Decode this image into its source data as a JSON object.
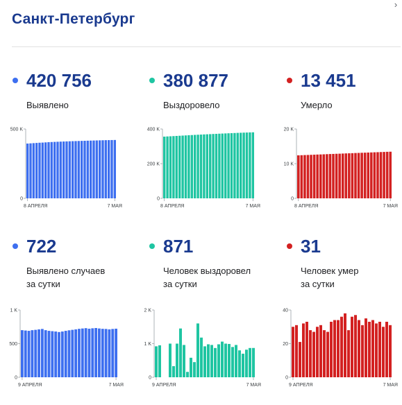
{
  "title": "Санкт-Петербург",
  "icons": {
    "expand": "chevron-icon"
  },
  "panels": [
    {
      "id": "detected",
      "value": "420 756",
      "label_lines": [
        "Выявлено"
      ],
      "color": "#3d6ff0",
      "chart_data": {
        "type": "bar",
        "x_first_label": "8 АПРЕЛЯ",
        "x_last_label": "7 МАЯ",
        "y_ticks": [
          {
            "value": 0,
            "label": "0"
          },
          {
            "value": 500000,
            "label": "500 K"
          }
        ],
        "ylim": [
          0,
          500000
        ],
        "values": [
          395000,
          396500,
          398000,
          399500,
          401000,
          402000,
          403500,
          405000,
          406000,
          407000,
          408000,
          409000,
          409800,
          410600,
          411400,
          412200,
          412900,
          413600,
          414300,
          415000,
          415700,
          416400,
          417000,
          417600,
          418200,
          418800,
          419400,
          419800,
          420300,
          420756
        ]
      }
    },
    {
      "id": "recovered",
      "value": "380 877",
      "label_lines": [
        "Выздоровело"
      ],
      "color": "#1fc5a2",
      "chart_data": {
        "type": "bar",
        "x_first_label": "8 АПРЕЛЯ",
        "x_last_label": "7 МАЯ",
        "y_ticks": [
          {
            "value": 0,
            "label": "0"
          },
          {
            "value": 200000,
            "label": "200 K"
          },
          {
            "value": 400000,
            "label": "400 K"
          }
        ],
        "ylim": [
          0,
          400000
        ],
        "values": [
          356000,
          357000,
          358000,
          359000,
          360000,
          361000,
          362000,
          363000,
          364000,
          365000,
          366000,
          366900,
          367800,
          368700,
          369500,
          370300,
          371200,
          372000,
          372900,
          373700,
          374500,
          375300,
          376100,
          376800,
          377600,
          378300,
          379000,
          379600,
          380300,
          380877
        ]
      }
    },
    {
      "id": "deaths",
      "value": "13 451",
      "label_lines": [
        "Умерло"
      ],
      "color": "#d32121",
      "chart_data": {
        "type": "bar",
        "x_first_label": "8 АПРЕЛЯ",
        "x_last_label": "7 МАЯ",
        "y_ticks": [
          {
            "value": 0,
            "label": "0"
          },
          {
            "value": 10000,
            "label": "10 K"
          },
          {
            "value": 20000,
            "label": "20 K"
          }
        ],
        "ylim": [
          0,
          20000
        ],
        "values": [
          12400,
          12440,
          12480,
          12510,
          12550,
          12590,
          12630,
          12660,
          12700,
          12740,
          12780,
          12810,
          12850,
          12880,
          12920,
          12960,
          12990,
          13030,
          13070,
          13100,
          13140,
          13170,
          13210,
          13240,
          13280,
          13310,
          13350,
          13380,
          13420,
          13451
        ]
      }
    },
    {
      "id": "daily-detected",
      "value": "722",
      "label_lines": [
        "Выявлено случаев",
        "за сутки"
      ],
      "color": "#3d6ff0",
      "chart_data": {
        "type": "bar",
        "x_first_label": "9 АПРЕЛЯ",
        "x_last_label": "7 МАЯ",
        "y_ticks": [
          {
            "value": 0,
            "label": "0"
          },
          {
            "value": 500,
            "label": "500"
          },
          {
            "value": 1000,
            "label": "1 K"
          }
        ],
        "ylim": [
          0,
          1000
        ],
        "values": [
          700,
          695,
          690,
          700,
          705,
          712,
          718,
          700,
          690,
          685,
          680,
          672,
          680,
          690,
          698,
          705,
          712,
          720,
          725,
          730,
          722,
          728,
          732,
          725,
          720,
          718,
          712,
          718,
          722
        ]
      }
    },
    {
      "id": "daily-recovered",
      "value": "871",
      "label_lines": [
        "Человек выздоровел",
        "за сутки"
      ],
      "color": "#1fc5a2",
      "chart_data": {
        "type": "bar",
        "x_first_label": "9 АПРЕЛЯ",
        "x_last_label": "7 МАЯ",
        "y_ticks": [
          {
            "value": 0,
            "label": "0"
          },
          {
            "value": 1000,
            "label": "1 K"
          },
          {
            "value": 2000,
            "label": "2 K"
          }
        ],
        "ylim": [
          0,
          2000
        ],
        "values": [
          920,
          950,
          0,
          0,
          1000,
          330,
          1000,
          1450,
          960,
          160,
          580,
          450,
          1600,
          1180,
          920,
          980,
          960,
          870,
          980,
          1060,
          1000,
          990,
          900,
          960,
          800,
          700,
          820,
          870,
          871
        ]
      }
    },
    {
      "id": "daily-deaths",
      "value": "31",
      "label_lines": [
        "Человек умер",
        "за сутки"
      ],
      "color": "#d32121",
      "chart_data": {
        "type": "bar",
        "x_first_label": "9 АПРЕЛЯ",
        "x_last_label": "7 МАЯ",
        "y_ticks": [
          {
            "value": 0,
            "label": "0"
          },
          {
            "value": 20,
            "label": "20"
          },
          {
            "value": 40,
            "label": "40"
          }
        ],
        "ylim": [
          0,
          40
        ],
        "values": [
          30,
          31,
          21,
          32,
          33,
          28,
          27,
          30,
          31,
          28,
          27,
          33,
          34,
          34,
          36,
          38,
          28,
          36,
          37,
          34,
          31,
          35,
          33,
          34,
          32,
          33,
          30,
          33,
          31
        ]
      }
    }
  ]
}
